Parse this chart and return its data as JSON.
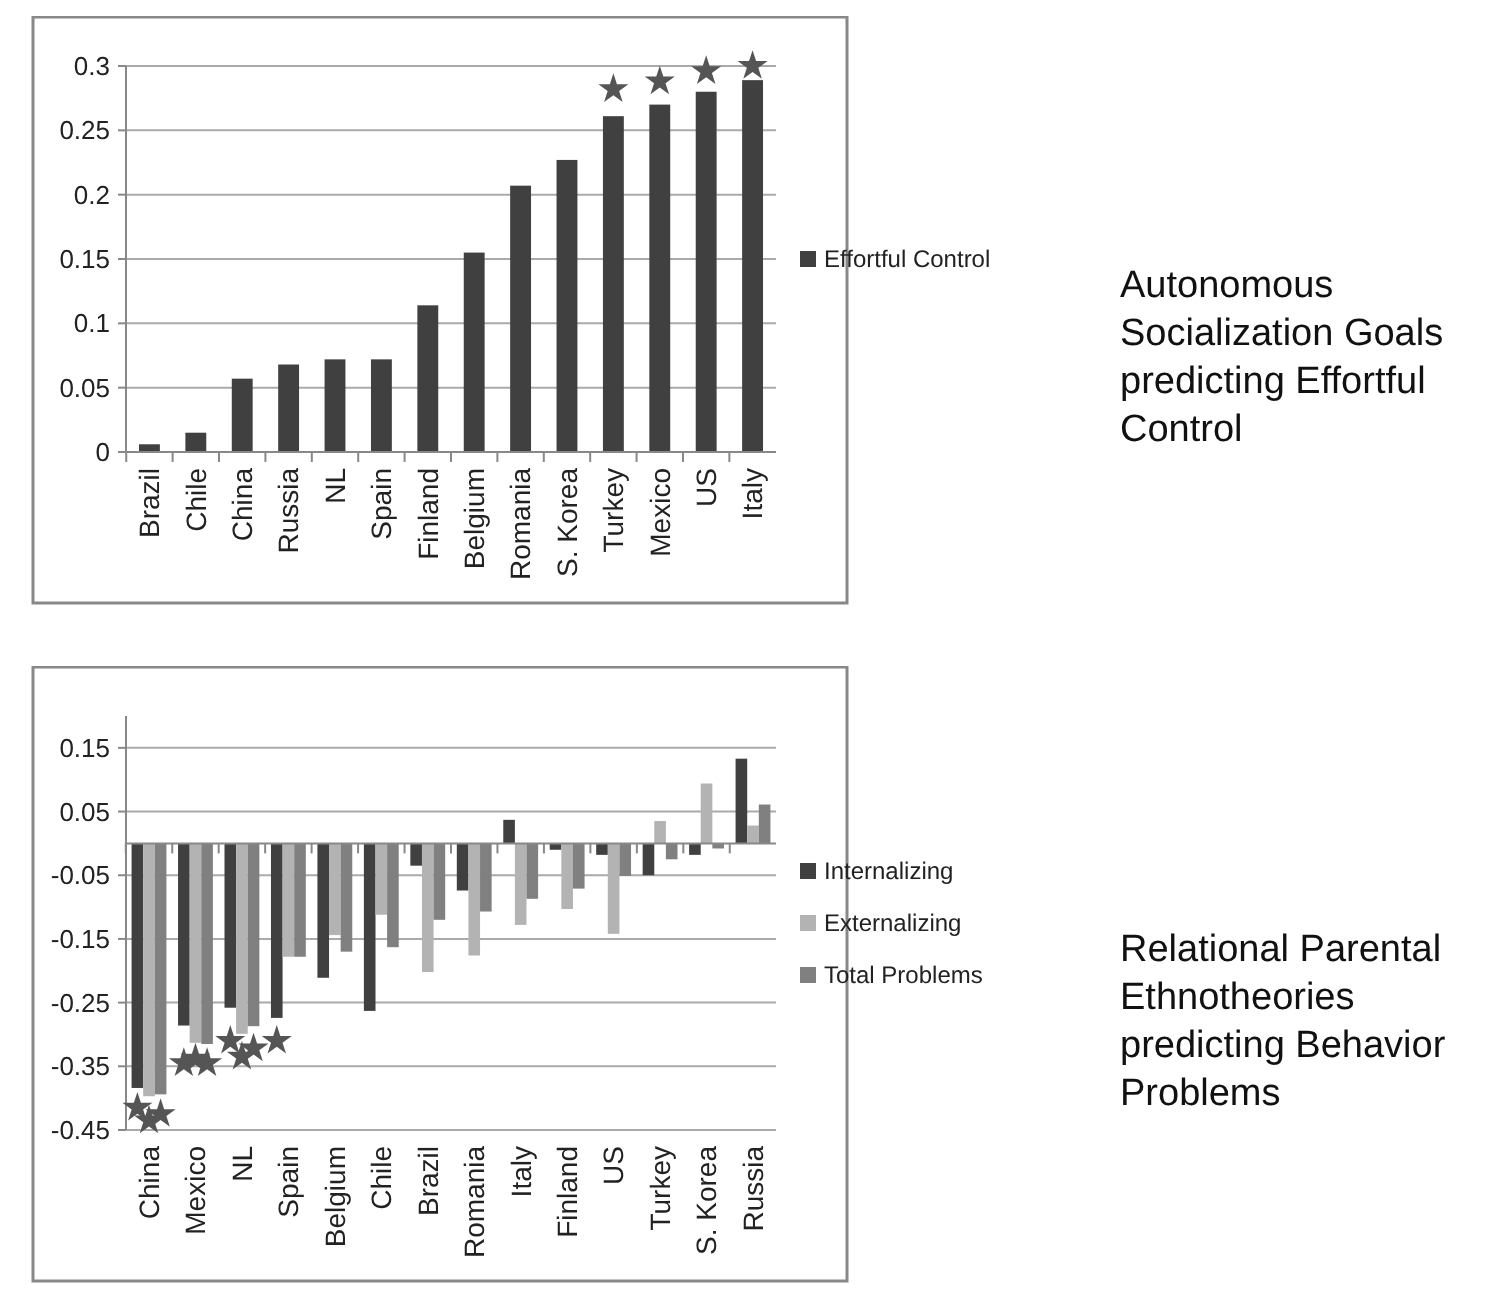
{
  "chart_data": [
    {
      "type": "bar",
      "annotations": [
        "Autonomous Socialization Goals predicting Effortful Control"
      ],
      "categories": [
        "Brazil",
        "Chile",
        "China",
        "Russia",
        "NL",
        "Spain",
        "Finland",
        "Belgium",
        "Romania",
        "S. Korea",
        "Turkey",
        "Mexico",
        "US",
        "Italy"
      ],
      "series": [
        {
          "name": "Effortful Control",
          "color": "#404040",
          "values": [
            0.006,
            0.015,
            0.057,
            0.068,
            0.072,
            0.072,
            0.114,
            0.155,
            0.207,
            0.227,
            0.261,
            0.27,
            0.28,
            0.289
          ]
        },
        {
          "type": "scatter",
          "marker": "star",
          "color": "#555555",
          "x": [
            "Turkey",
            "Mexico",
            "US",
            "Italy"
          ],
          "values": [
            0.282,
            0.288,
            0.296,
            0.3
          ]
        }
      ],
      "ylim": [
        0,
        0.3
      ],
      "yticks": [
        0,
        0.05,
        {
          "value": 0.1,
          "label": "0.1"
        },
        0.15,
        {
          "value": 0.2,
          "label": "0.2"
        },
        0.25,
        {
          "value": 0.3,
          "label": "0.3"
        }
      ],
      "grid": "y",
      "legend": "right"
    },
    {
      "type": "bar",
      "annotations": [
        "Relational Parental Ethnotheories predicting Behavior Problems"
      ],
      "categories": [
        "China",
        "Mexico",
        "NL",
        "Spain",
        "Belgium",
        "Chile",
        "Brazil",
        "Romania",
        "Italy",
        "Finland",
        "US",
        "Turkey",
        "S. Korea",
        "Russia"
      ],
      "series": [
        {
          "name": "Internalizing",
          "color": "#404040",
          "values": [
            -0.384,
            -0.286,
            -0.258,
            -0.274,
            -0.211,
            -0.263,
            -0.035,
            -0.074,
            0.037,
            -0.01,
            -0.018,
            -0.05,
            -0.018,
            0.133
          ]
        },
        {
          "name": "Externalizing",
          "color": "#b3b3b3",
          "values": [
            -0.397,
            -0.313,
            -0.299,
            -0.178,
            -0.144,
            -0.112,
            -0.202,
            -0.176,
            -0.128,
            -0.103,
            -0.142,
            0.035,
            0.094,
            0.028
          ]
        },
        {
          "name": "Total Problems",
          "color": "#808080",
          "values": [
            -0.394,
            -0.315,
            -0.287,
            -0.178,
            -0.17,
            -0.163,
            -0.12,
            -0.107,
            -0.087,
            -0.071,
            -0.051,
            -0.025,
            -0.008,
            0.061
          ]
        },
        {
          "type": "scatter",
          "marker": "star",
          "color": "#555555",
          "x": [
            "China",
            "Mexico",
            "NL",
            "Spain"
          ],
          "values": [
            -0.415,
            -0.345,
            -0.31,
            -0.31
          ]
        },
        {
          "type": "scatter",
          "marker": "star",
          "color": "#555555",
          "x": [
            "China",
            "Mexico",
            "NL"
          ],
          "values": [
            -0.435,
            -0.338,
            -0.335
          ]
        },
        {
          "type": "scatter",
          "marker": "star",
          "color": "#555555",
          "x": [
            "China",
            "Mexico",
            "NL"
          ],
          "values": [
            -0.425,
            -0.345,
            -0.322
          ]
        }
      ],
      "ylim": [
        -0.45,
        0.2
      ],
      "yticks": [
        0.15,
        0.05,
        -0.05,
        -0.15,
        -0.25,
        -0.35,
        -0.45
      ],
      "grid": "y",
      "legend": "right"
    }
  ]
}
